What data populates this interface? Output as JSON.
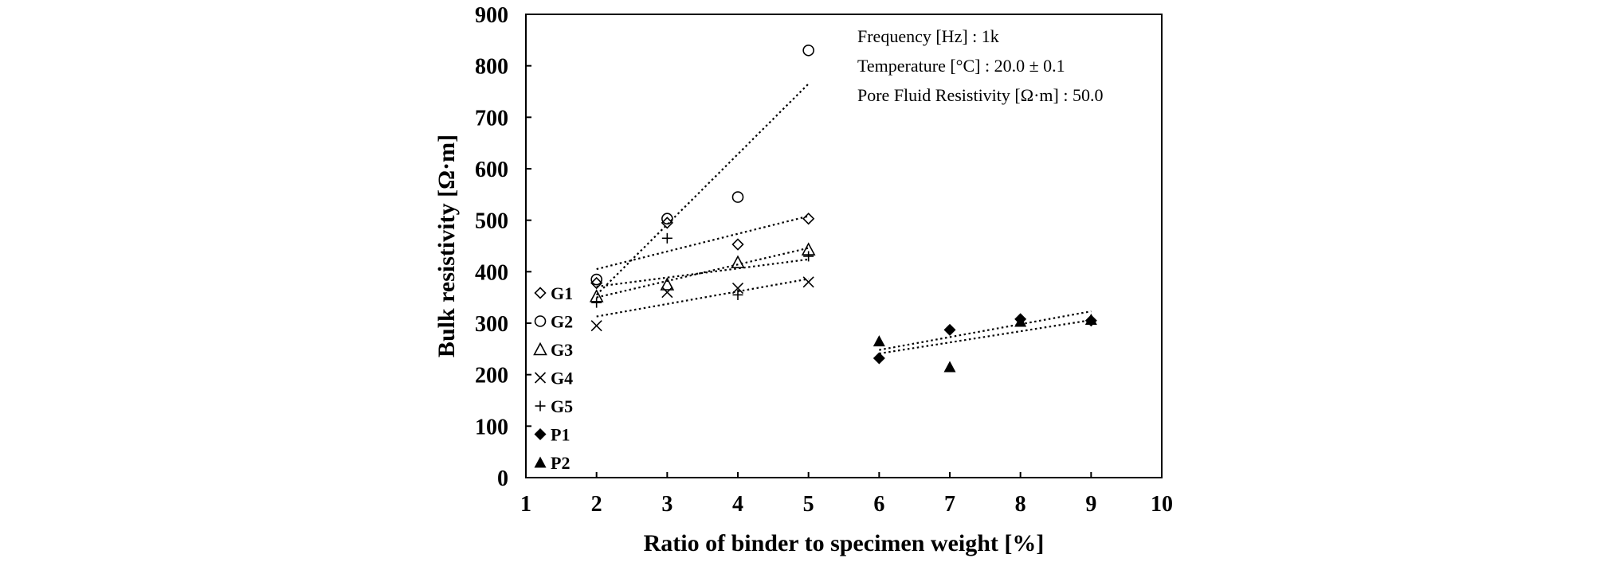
{
  "chart_data": {
    "type": "scatter",
    "title": "",
    "xlabel": "Ratio of binder to specimen weight [%]",
    "ylabel": "Bulk resistivity  [Ω·m]",
    "xlim": [
      1,
      10
    ],
    "ylim": [
      0,
      900
    ],
    "xticks": [
      1,
      2,
      3,
      4,
      5,
      6,
      7,
      8,
      9,
      10
    ],
    "yticks": [
      0,
      100,
      200,
      300,
      400,
      500,
      600,
      700,
      800,
      900
    ],
    "grid": false,
    "legend_position": "left-inside",
    "annotations": [
      "Frequency [Hz] : 1k",
      "Temperature [°C] : 20.0 ± 0.1",
      "Pore Fluid Resistivity  [Ω·m] : 50.0"
    ],
    "series": [
      {
        "name": "G1",
        "marker": "diamond-open",
        "x": [
          2,
          3,
          4,
          5
        ],
        "y": [
          378,
          495,
          453,
          503
        ],
        "trend": [
          [
            2,
            405
          ],
          [
            5,
            508
          ]
        ]
      },
      {
        "name": "G2",
        "marker": "circle-open",
        "x": [
          2,
          3,
          4,
          5
        ],
        "y": [
          385,
          503,
          545,
          830
        ],
        "trend": [
          [
            2,
            355
          ],
          [
            5,
            765
          ]
        ]
      },
      {
        "name": "G3",
        "marker": "triangle-open",
        "x": [
          2,
          3,
          4,
          5
        ],
        "y": [
          352,
          375,
          418,
          443
        ],
        "trend": [
          [
            2,
            350
          ],
          [
            5,
            446
          ]
        ]
      },
      {
        "name": "G4",
        "marker": "x",
        "x": [
          2,
          3,
          4,
          5
        ],
        "y": [
          295,
          360,
          368,
          380
        ],
        "trend": [
          [
            2,
            313
          ],
          [
            5,
            386
          ]
        ]
      },
      {
        "name": "G5",
        "marker": "plus",
        "x": [
          2,
          3,
          4,
          5
        ],
        "y": [
          340,
          465,
          355,
          430
        ],
        "trend": [
          [
            2,
            371
          ],
          [
            5,
            424
          ]
        ]
      },
      {
        "name": "P1",
        "marker": "diamond-filled",
        "x": [
          6,
          7,
          8,
          9
        ],
        "y": [
          232,
          287,
          308,
          305
        ],
        "trend": [
          [
            6,
            248
          ],
          [
            9,
            323
          ]
        ]
      },
      {
        "name": "P2",
        "marker": "triangle-filled",
        "x": [
          6,
          7,
          8,
          9
        ],
        "y": [
          265,
          215,
          303,
          307
        ],
        "trend": [
          [
            6,
            241
          ],
          [
            9,
            306
          ]
        ]
      }
    ]
  }
}
